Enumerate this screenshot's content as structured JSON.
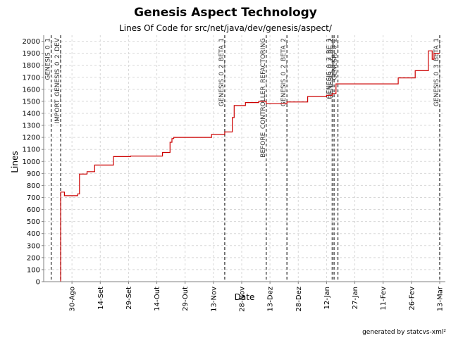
{
  "chart_data": {
    "type": "line",
    "title": "Genesis Aspect Technology",
    "subtitle": "Lines Of Code for src/net/java/dev/genesis/aspect/",
    "xlabel": "Date",
    "ylabel": "Lines",
    "footer": "generated by statcvs-xml²",
    "grid": true,
    "x_range": [
      "2004-08-15",
      "2005-03-16"
    ],
    "ylim": [
      0,
      2050
    ],
    "y_ticks": [
      0,
      100,
      200,
      300,
      400,
      500,
      600,
      700,
      800,
      900,
      1000,
      1100,
      1200,
      1300,
      1400,
      1500,
      1600,
      1700,
      1800,
      1900,
      2000
    ],
    "x_ticks": [
      {
        "date": "2004-08-30",
        "label": "30-Ago"
      },
      {
        "date": "2004-09-14",
        "label": "14-Set"
      },
      {
        "date": "2004-09-29",
        "label": "29-Set"
      },
      {
        "date": "2004-10-14",
        "label": "14-Out"
      },
      {
        "date": "2004-10-29",
        "label": "29-Out"
      },
      {
        "date": "2004-11-13",
        "label": "13-Nov"
      },
      {
        "date": "2004-11-28",
        "label": "28-Nov"
      },
      {
        "date": "2004-12-13",
        "label": "13-Dez"
      },
      {
        "date": "2004-12-28",
        "label": "28-Dez"
      },
      {
        "date": "2005-01-12",
        "label": "12-Jan"
      },
      {
        "date": "2005-01-27",
        "label": "27-Jan"
      },
      {
        "date": "2005-02-11",
        "label": "11-Fev"
      },
      {
        "date": "2005-02-26",
        "label": "26-Fev"
      },
      {
        "date": "2005-03-13",
        "label": "13-Mar"
      }
    ],
    "series": [
      {
        "color": "#cc0000",
        "points": [
          [
            "2004-08-24",
            0
          ],
          [
            "2004-08-24",
            745
          ],
          [
            "2004-08-26",
            745
          ],
          [
            "2004-08-26",
            715
          ],
          [
            "2004-09-02",
            715
          ],
          [
            "2004-09-02",
            730
          ],
          [
            "2004-09-03",
            730
          ],
          [
            "2004-09-03",
            895
          ],
          [
            "2004-09-07",
            895
          ],
          [
            "2004-09-07",
            915
          ],
          [
            "2004-09-11",
            915
          ],
          [
            "2004-09-11",
            970
          ],
          [
            "2004-09-21",
            970
          ],
          [
            "2004-09-21",
            1040
          ],
          [
            "2004-09-30",
            1040
          ],
          [
            "2004-09-30",
            1045
          ],
          [
            "2004-10-17",
            1045
          ],
          [
            "2004-10-17",
            1075
          ],
          [
            "2004-10-21",
            1075
          ],
          [
            "2004-10-21",
            1160
          ],
          [
            "2004-10-22",
            1160
          ],
          [
            "2004-10-22",
            1190
          ],
          [
            "2004-10-23",
            1190
          ],
          [
            "2004-10-23",
            1200
          ],
          [
            "2004-11-12",
            1200
          ],
          [
            "2004-11-12",
            1225
          ],
          [
            "2004-11-19",
            1225
          ],
          [
            "2004-11-19",
            1245
          ],
          [
            "2004-11-23",
            1245
          ],
          [
            "2004-11-23",
            1365
          ],
          [
            "2004-11-24",
            1365
          ],
          [
            "2004-11-24",
            1465
          ],
          [
            "2004-11-30",
            1465
          ],
          [
            "2004-11-30",
            1490
          ],
          [
            "2004-12-07",
            1490
          ],
          [
            "2004-12-07",
            1500
          ],
          [
            "2004-12-11",
            1500
          ],
          [
            "2004-12-11",
            1480
          ],
          [
            "2004-12-22",
            1480
          ],
          [
            "2004-12-22",
            1495
          ],
          [
            "2005-01-02",
            1495
          ],
          [
            "2005-01-02",
            1540
          ],
          [
            "2005-01-12",
            1540
          ],
          [
            "2005-01-12",
            1550
          ],
          [
            "2005-01-15",
            1550
          ],
          [
            "2005-01-15",
            1565
          ],
          [
            "2005-01-17",
            1565
          ],
          [
            "2005-01-17",
            1645
          ],
          [
            "2005-02-19",
            1645
          ],
          [
            "2005-02-19",
            1695
          ],
          [
            "2005-02-28",
            1695
          ],
          [
            "2005-02-28",
            1755
          ],
          [
            "2005-03-07",
            1755
          ],
          [
            "2005-03-07",
            1920
          ],
          [
            "2005-03-09",
            1920
          ],
          [
            "2005-03-09",
            1850
          ],
          [
            "2005-03-10",
            1850
          ],
          [
            "2005-03-10",
            1900
          ],
          [
            "2005-03-13",
            1900
          ]
        ]
      }
    ],
    "markers": [
      {
        "date": "2004-08-19",
        "label": "GENESIS_0_1"
      },
      {
        "date": "2004-08-24",
        "label": "IMPORT_GENESIS_0_2_DEV"
      },
      {
        "date": "2004-11-19",
        "label": "GENESIS_0_2_BETA_1"
      },
      {
        "date": "2004-12-11",
        "label": "BEFORE_CONTROLLER_REFACTORING"
      },
      {
        "date": "2004-12-22",
        "label": "GENESIS_0_2_BETA_2"
      },
      {
        "date": "2005-01-15",
        "label": "GENESIS_0_2_RC_1"
      },
      {
        "date": "2005-01-16",
        "label": "GENESIS_0_2_RC_2"
      },
      {
        "date": "2005-01-18",
        "label": "GENESIS_0_2"
      },
      {
        "date": "2005-03-13",
        "label": "GENESIS_0_3_BETA_1"
      }
    ]
  }
}
